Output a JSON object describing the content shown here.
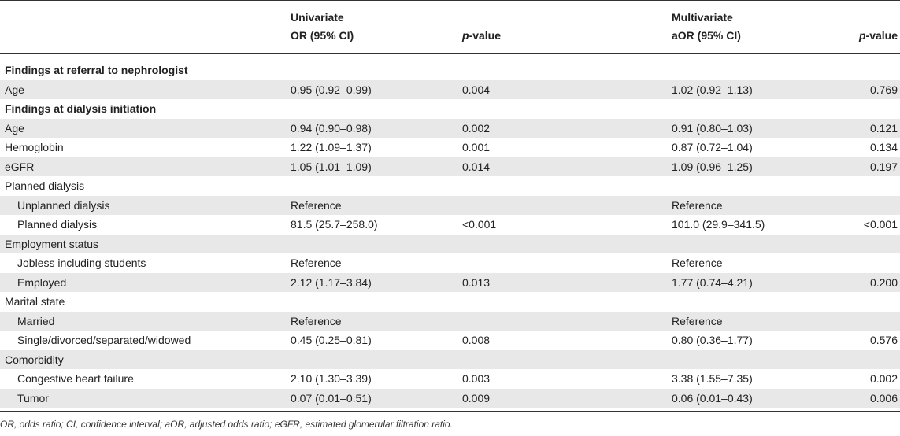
{
  "header": {
    "univariate": "Univariate",
    "multivariate": "Multivariate",
    "or_ci": "OR (95% CI)",
    "aor_ci": "aOR (95% CI)",
    "p_italic": "p",
    "p_suffix": "-value"
  },
  "rows": [
    {
      "type": "section",
      "label": "Findings at referral to nephrologist"
    },
    {
      "type": "data",
      "label": "Age",
      "or": "0.95 (0.92–0.99)",
      "p1": "0.004",
      "aor": "1.02 (0.92–1.13)",
      "p2": "0.769"
    },
    {
      "type": "section",
      "label": "Findings at dialysis initiation"
    },
    {
      "type": "data",
      "label": "Age",
      "or": "0.94 (0.90–0.98)",
      "p1": "0.002",
      "aor": "0.91 (0.80–1.03)",
      "p2": "0.121"
    },
    {
      "type": "data",
      "label": "Hemoglobin",
      "or": "1.22 (1.09–1.37)",
      "p1": "0.001",
      "aor": "0.87 (0.72–1.04)",
      "p2": "0.134"
    },
    {
      "type": "data",
      "label": "eGFR",
      "or": "1.05 (1.01–1.09)",
      "p1": "0.014",
      "aor": "1.09 (0.96–1.25)",
      "p2": "0.197"
    },
    {
      "type": "data",
      "label": "Planned dialysis",
      "or": "",
      "p1": "",
      "aor": "",
      "p2": ""
    },
    {
      "type": "data",
      "indent": true,
      "label": "Unplanned dialysis",
      "or": "Reference",
      "p1": "",
      "aor": "Reference",
      "p2": ""
    },
    {
      "type": "data",
      "indent": true,
      "label": "Planned dialysis",
      "or": "81.5 (25.7–258.0)",
      "p1": "<0.001",
      "aor": "101.0 (29.9–341.5)",
      "p2": "<0.001"
    },
    {
      "type": "data",
      "label": "Employment status",
      "or": "",
      "p1": "",
      "aor": "",
      "p2": ""
    },
    {
      "type": "data",
      "indent": true,
      "label": "Jobless including students",
      "or": "Reference",
      "p1": "",
      "aor": "Reference",
      "p2": ""
    },
    {
      "type": "data",
      "indent": true,
      "label": "Employed",
      "or": "2.12 (1.17–3.84)",
      "p1": "0.013",
      "aor": "1.77 (0.74–4.21)",
      "p2": "0.200"
    },
    {
      "type": "data",
      "label": "Marital state",
      "or": "",
      "p1": "",
      "aor": "",
      "p2": ""
    },
    {
      "type": "data",
      "indent": true,
      "label": "Married",
      "or": "Reference",
      "p1": "",
      "aor": "Reference",
      "p2": ""
    },
    {
      "type": "data",
      "indent": true,
      "label": "Single/divorced/separated/widowed",
      "or": "0.45 (0.25–0.81)",
      "p1": "0.008",
      "aor": "0.80 (0.36–1.77)",
      "p2": "0.576"
    },
    {
      "type": "data",
      "label": "Comorbidity",
      "or": "",
      "p1": "",
      "aor": "",
      "p2": ""
    },
    {
      "type": "data",
      "indent": true,
      "label": "Congestive heart failure",
      "or": "2.10 (1.30–3.39)",
      "p1": "0.003",
      "aor": "3.38 (1.55–7.35)",
      "p2": "0.002"
    },
    {
      "type": "data",
      "indent": true,
      "label": "Tumor",
      "or": "0.07 (0.01–0.51)",
      "p1": "0.009",
      "aor": "0.06 (0.01–0.43)",
      "p2": "0.006"
    }
  ],
  "footnote": "OR, odds ratio; CI, confidence interval; aOR, adjusted odds ratio; eGFR, estimated glomerular filtration ratio."
}
